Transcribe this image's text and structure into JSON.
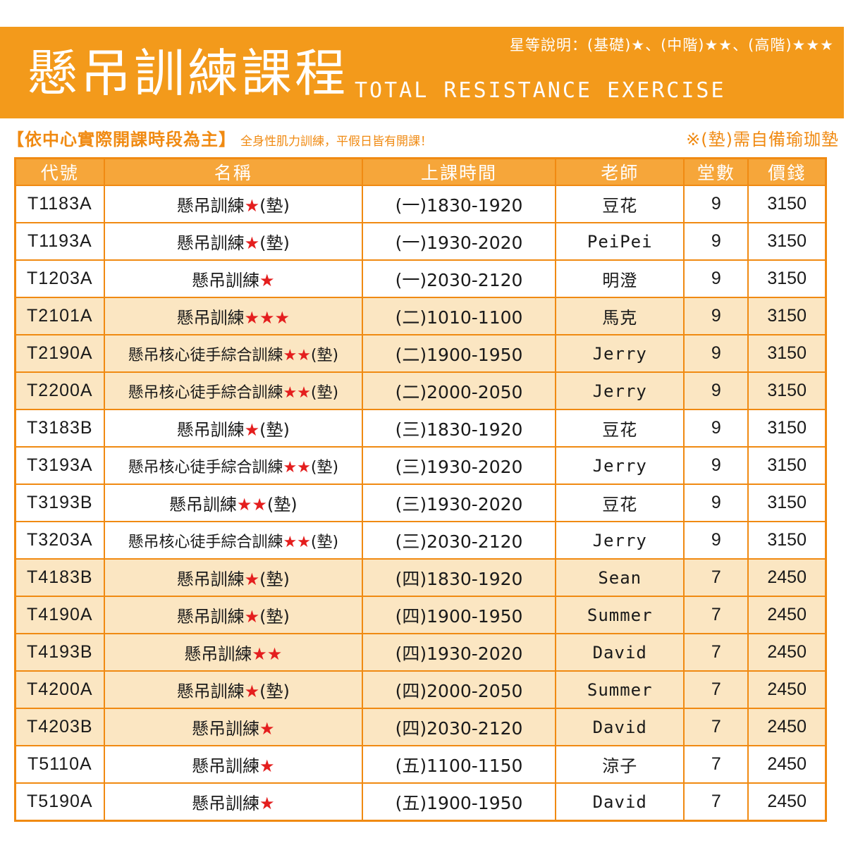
{
  "header": {
    "legend": "星等說明：(基礎)★、(中階)★★、(高階)★★★",
    "title_zh": "懸吊訓練課程",
    "title_en": "TOTAL RESISTANCE EXERCISE"
  },
  "subheader": {
    "main": "【依中心實際開課時段為主】",
    "note": "全身性肌力訓練，平假日皆有開課！",
    "right": "※(墊)需自備瑜珈墊"
  },
  "table": {
    "columns": [
      "代號",
      "名稱",
      "上課時間",
      "老師",
      "堂數",
      "價錢"
    ],
    "rows": [
      {
        "code": "T1183A",
        "name": "懸吊訓練",
        "stars": "★",
        "mat": "(墊)",
        "time": "(一)1830-1920",
        "teacher": "豆花",
        "sessions": "9",
        "price": "3150",
        "shaded": false
      },
      {
        "code": "T1193A",
        "name": "懸吊訓練",
        "stars": "★",
        "mat": "(墊)",
        "time": "(一)1930-2020",
        "teacher": "PeiPei",
        "sessions": "9",
        "price": "3150",
        "shaded": false
      },
      {
        "code": "T1203A",
        "name": "懸吊訓練",
        "stars": "★",
        "mat": "",
        "time": "(一)2030-2120",
        "teacher": "明澄",
        "sessions": "9",
        "price": "3150",
        "shaded": false
      },
      {
        "code": "T2101A",
        "name": "懸吊訓練",
        "stars": "★★★",
        "mat": "",
        "time": "(二)1010-1100",
        "teacher": "馬克",
        "sessions": "9",
        "price": "3150",
        "shaded": true
      },
      {
        "code": "T2190A",
        "name": "懸吊核心徒手綜合訓練",
        "stars": "★★",
        "mat": "(墊)",
        "time": "(二)1900-1950",
        "teacher": "Jerry",
        "sessions": "9",
        "price": "3150",
        "shaded": true
      },
      {
        "code": "T2200A",
        "name": "懸吊核心徒手綜合訓練",
        "stars": "★★",
        "mat": "(墊)",
        "time": "(二)2000-2050",
        "teacher": "Jerry",
        "sessions": "9",
        "price": "3150",
        "shaded": true
      },
      {
        "code": "T3183B",
        "name": "懸吊訓練",
        "stars": "★",
        "mat": "(墊)",
        "time": "(三)1830-1920",
        "teacher": "豆花",
        "sessions": "9",
        "price": "3150",
        "shaded": false
      },
      {
        "code": "T3193A",
        "name": "懸吊核心徒手綜合訓練",
        "stars": "★★",
        "mat": "(墊)",
        "time": "(三)1930-2020",
        "teacher": "Jerry",
        "sessions": "9",
        "price": "3150",
        "shaded": false
      },
      {
        "code": "T3193B",
        "name": "懸吊訓練",
        "stars": "★★",
        "mat": "(墊)",
        "time": "(三)1930-2020",
        "teacher": "豆花",
        "sessions": "9",
        "price": "3150",
        "shaded": false
      },
      {
        "code": "T3203A",
        "name": "懸吊核心徒手綜合訓練",
        "stars": "★★",
        "mat": "(墊)",
        "time": "(三)2030-2120",
        "teacher": "Jerry",
        "sessions": "9",
        "price": "3150",
        "shaded": false
      },
      {
        "code": "T4183B",
        "name": "懸吊訓練",
        "stars": "★",
        "mat": "(墊)",
        "time": "(四)1830-1920",
        "teacher": "Sean",
        "sessions": "7",
        "price": "2450",
        "shaded": true
      },
      {
        "code": "T4190A",
        "name": "懸吊訓練",
        "stars": "★",
        "mat": "(墊)",
        "time": "(四)1900-1950",
        "teacher": "Summer",
        "sessions": "7",
        "price": "2450",
        "shaded": true
      },
      {
        "code": "T4193B",
        "name": "懸吊訓練",
        "stars": "★★",
        "mat": "",
        "time": "(四)1930-2020",
        "teacher": "David",
        "sessions": "7",
        "price": "2450",
        "shaded": true
      },
      {
        "code": "T4200A",
        "name": "懸吊訓練",
        "stars": "★",
        "mat": "(墊)",
        "time": "(四)2000-2050",
        "teacher": "Summer",
        "sessions": "7",
        "price": "2450",
        "shaded": true
      },
      {
        "code": "T4203B",
        "name": "懸吊訓練",
        "stars": "★",
        "mat": "",
        "time": "(四)2030-2120",
        "teacher": "David",
        "sessions": "7",
        "price": "2450",
        "shaded": true
      },
      {
        "code": "T5110A",
        "name": "懸吊訓練",
        "stars": "★",
        "mat": "",
        "time": "(五)1100-1150",
        "teacher": "涼子",
        "sessions": "7",
        "price": "2450",
        "shaded": false
      },
      {
        "code": "T5190A",
        "name": "懸吊訓練",
        "stars": "★",
        "mat": "",
        "time": "(五)1900-1950",
        "teacher": "David",
        "sessions": "7",
        "price": "2450",
        "shaded": false
      }
    ]
  },
  "colors": {
    "banner": "#f39a1b",
    "accent": "#f08a12",
    "header_cell": "#f6a63a",
    "shaded_row": "#fbe6c2",
    "star": "#e41e1e"
  }
}
